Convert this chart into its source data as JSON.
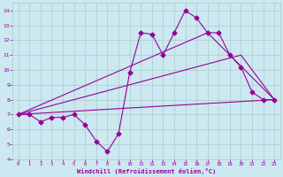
{
  "background_color": "#cce8f0",
  "grid_color": "#aacccc",
  "line_color": "#990099",
  "xlabel": "Windchill (Refroidissement éolien,°C)",
  "xlim": [
    -0.5,
    23.5
  ],
  "ylim": [
    4,
    14.5
  ],
  "xticks": [
    0,
    1,
    2,
    3,
    4,
    5,
    6,
    7,
    8,
    9,
    10,
    11,
    12,
    13,
    14,
    15,
    16,
    17,
    18,
    19,
    20,
    21,
    22,
    23
  ],
  "yticks": [
    4,
    5,
    6,
    7,
    8,
    9,
    10,
    11,
    12,
    13,
    14
  ],
  "series": [
    {
      "x": [
        0,
        1,
        2,
        3,
        4,
        5,
        6,
        7,
        8,
        9,
        10,
        11,
        12,
        13,
        14,
        15,
        16,
        17,
        18,
        19,
        20,
        21,
        22,
        23
      ],
      "y": [
        7.0,
        7.0,
        6.5,
        6.8,
        6.8,
        7.0,
        6.3,
        5.2,
        4.5,
        5.7,
        9.8,
        12.5,
        12.4,
        11.0,
        12.5,
        14.0,
        13.5,
        12.5,
        12.5,
        11.0,
        10.2,
        8.5,
        8.0,
        8.0
      ],
      "marker": "D",
      "markersize": 2.5
    },
    {
      "x": [
        0,
        23
      ],
      "y": [
        7.0,
        8.0
      ],
      "marker": null,
      "markersize": 0
    },
    {
      "x": [
        0,
        20,
        23
      ],
      "y": [
        7.0,
        11.0,
        8.0
      ],
      "marker": null,
      "markersize": 0
    },
    {
      "x": [
        0,
        17,
        23
      ],
      "y": [
        7.0,
        12.5,
        8.0
      ],
      "marker": null,
      "markersize": 0
    }
  ]
}
